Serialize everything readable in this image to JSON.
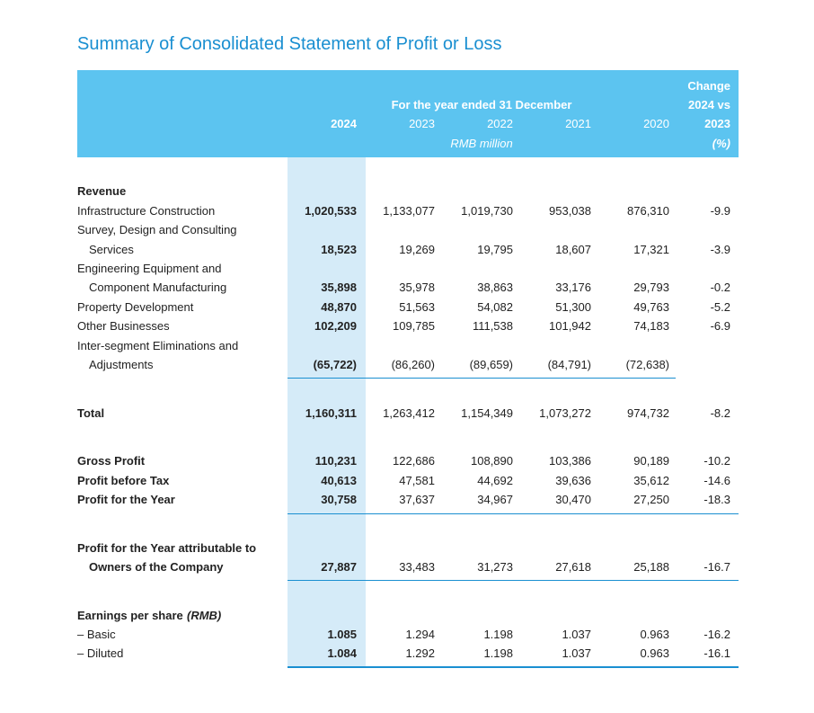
{
  "header": {
    "title": "Summary of Consolidated Statement of Profit or Loss"
  },
  "table": {
    "period": "For the year ended 31 December",
    "unit": "RMB million",
    "columns": [
      "2024",
      "2023",
      "2022",
      "2021",
      "2020"
    ],
    "change_header": [
      "Change",
      "2024 vs",
      "2023",
      "(%)"
    ],
    "rows": [
      {
        "label": "Revenue"
      },
      {
        "label": "Infrastructure Construction",
        "values": [
          "1,020,533",
          "1,133,077",
          "1,019,730",
          "953,038",
          "876,310",
          "-9.9"
        ]
      },
      {
        "label": "Survey, Design and Consulting"
      },
      {
        "label": "Services",
        "values": [
          "18,523",
          "19,269",
          "19,795",
          "18,607",
          "17,321",
          "-3.9"
        ]
      },
      {
        "label": "Engineering Equipment and"
      },
      {
        "label": "Component Manufacturing",
        "values": [
          "35,898",
          "35,978",
          "38,863",
          "33,176",
          "29,793",
          "-0.2"
        ]
      },
      {
        "label": "Property Development",
        "values": [
          "48,870",
          "51,563",
          "54,082",
          "51,300",
          "49,763",
          "-5.2"
        ]
      },
      {
        "label": "Other Businesses",
        "values": [
          "102,209",
          "109,785",
          "111,538",
          "101,942",
          "74,183",
          "-6.9"
        ]
      },
      {
        "label": "Inter-segment Eliminations and"
      },
      {
        "label": "Adjustments",
        "values": [
          "(65,722)",
          "(86,260)",
          "(89,659)",
          "(84,791)",
          "(72,638)"
        ]
      },
      {
        "label": "Total",
        "values": [
          "1,160,311",
          "1,263,412",
          "1,154,349",
          "1,073,272",
          "974,732",
          "-8.2"
        ]
      },
      {
        "label": "Gross Profit",
        "values": [
          "110,231",
          "122,686",
          "108,890",
          "103,386",
          "90,189",
          "-10.2"
        ]
      },
      {
        "label": "Profit before Tax",
        "values": [
          "40,613",
          "47,581",
          "44,692",
          "39,636",
          "35,612",
          "-14.6"
        ]
      },
      {
        "label": "Profit for the Year",
        "values": [
          "30,758",
          "37,637",
          "34,967",
          "30,470",
          "27,250",
          "-18.3"
        ]
      },
      {
        "label": "Profit for the Year attributable to"
      },
      {
        "label": "Owners of the Company",
        "values": [
          "27,887",
          "33,483",
          "31,273",
          "27,618",
          "25,188",
          "-16.7"
        ]
      },
      {
        "label": "Earnings per share",
        "label_note": "(RMB)"
      },
      {
        "label": "– Basic",
        "values": [
          "1.085",
          "1.294",
          "1.198",
          "1.037",
          "0.963",
          "-16.2"
        ]
      },
      {
        "label": "– Diluted",
        "values": [
          "1.084",
          "1.292",
          "1.198",
          "1.037",
          "0.963",
          "-16.1"
        ]
      }
    ]
  }
}
